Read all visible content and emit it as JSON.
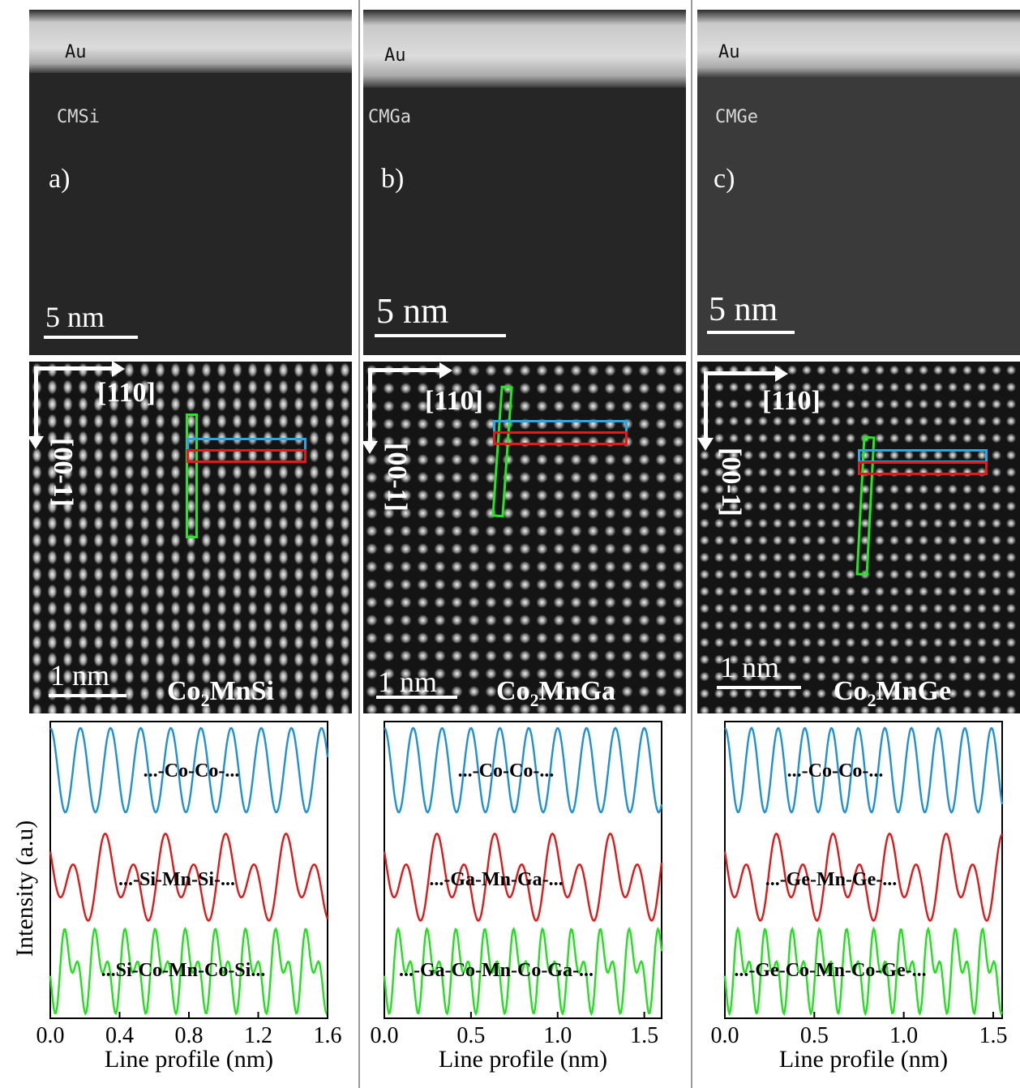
{
  "panels": [
    {
      "top_label": "Au",
      "material_label": "CMSi",
      "panel_letter": "a)",
      "top_scale": "5 nm",
      "dir_h": "[110]",
      "dir_v": "[00-1]",
      "hr_scale": "1 nm",
      "compound_base": "Co",
      "compound_sub": "2",
      "compound_rest": "MnSi",
      "chart_data": {
        "type": "line",
        "xlabel": "Line profile (nm)",
        "ylabel": "Intensity (a.u)",
        "xlim": [
          0,
          1.6
        ],
        "xticks": [
          "0.0",
          "0.4",
          "0.8",
          "1.2",
          "1.6"
        ],
        "series": [
          {
            "name": "...-Co-Co-...",
            "color": "#1e90d6"
          },
          {
            "name": "...-Si-Mn-Si-...",
            "color": "#e01818"
          },
          {
            "name": "...Si-Co-Mn-Co-Si...",
            "color": "#22e01e"
          }
        ]
      }
    },
    {
      "top_label": "Au",
      "material_label": "CMGa",
      "panel_letter": "b)",
      "top_scale": "5 nm",
      "dir_h": "[110]",
      "dir_v": "[00-1]",
      "hr_scale": "1 nm",
      "compound_base": "Co",
      "compound_sub": "2",
      "compound_rest": "MnGa",
      "chart_data": {
        "type": "line",
        "xlabel": "Line profile (nm)",
        "ylabel": "",
        "xlim": [
          0,
          1.6
        ],
        "xticks": [
          "0.0",
          "0.5",
          "1.0",
          "1.5"
        ],
        "series": [
          {
            "name": "...-Co-Co-...",
            "color": "#1e90d6"
          },
          {
            "name": "...-Ga-Mn-Ga-...",
            "color": "#e01818"
          },
          {
            "name": "...-Ga-Co-Mn-Co-Ga-...",
            "color": "#22e01e"
          }
        ]
      }
    },
    {
      "top_label": "Au",
      "material_label": "CMGe",
      "panel_letter": "c)",
      "top_scale": "5 nm",
      "dir_h": "[110]",
      "dir_v": "[00-1]",
      "hr_scale": "1 nm",
      "compound_base": "Co",
      "compound_sub": "2",
      "compound_rest": "MnGe",
      "chart_data": {
        "type": "line",
        "xlabel": "Line profile (nm)",
        "ylabel": "",
        "xlim": [
          0,
          1.55
        ],
        "xticks": [
          "0.0",
          "0.5",
          "1.0",
          "1.5"
        ],
        "series": [
          {
            "name": "...-Co-Co-...",
            "color": "#1e90d6"
          },
          {
            "name": "...-Ge-Mn-Ge-...",
            "color": "#e01818"
          },
          {
            "name": "...-Ge-Co-Mn-Co-Ge-...",
            "color": "#22e01e"
          }
        ]
      }
    }
  ],
  "ylabel": "Intensity (a.u)"
}
